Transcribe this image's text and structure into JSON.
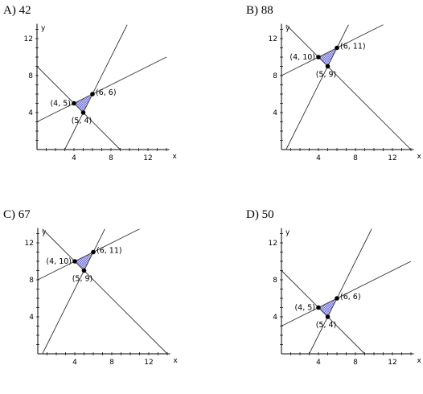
{
  "options": [
    {
      "label": "A)",
      "value": "42",
      "x_axis_label": "x",
      "y_axis_label": "y",
      "x_ticks": [
        "4",
        "8",
        "12"
      ],
      "y_ticks": [
        "12",
        "8",
        "4"
      ],
      "lines": [
        {
          "through": [
            [
              3,
              0
            ],
            [
              9.5,
              13
            ]
          ]
        },
        {
          "through": [
            [
              0,
              3
            ],
            [
              14,
              10
            ]
          ]
        },
        {
          "through": [
            [
              0,
              9
            ],
            [
              9,
              0
            ]
          ]
        }
      ],
      "points": [
        {
          "label": "(4, 5)",
          "x": 4,
          "y": 5
        },
        {
          "label": "(6, 6)",
          "x": 6,
          "y": 6
        },
        {
          "label": "(5, 4)",
          "x": 5,
          "y": 4
        }
      ]
    },
    {
      "label": "B)",
      "value": "88",
      "x_axis_label": "x",
      "y_axis_label": "y",
      "x_ticks": [
        "4",
        "8",
        "12"
      ],
      "y_ticks": [
        "12",
        "8",
        "4"
      ],
      "lines": [
        {
          "through": [
            [
              0.5,
              0
            ],
            [
              7,
              13
            ]
          ]
        },
        {
          "through": [
            [
              0,
              8
            ],
            [
              11,
              13.5
            ]
          ]
        },
        {
          "through": [
            [
              1,
              13
            ],
            [
              13,
              1
            ]
          ]
        }
      ],
      "points": [
        {
          "label": "(4, 10)",
          "x": 4,
          "y": 10
        },
        {
          "label": "(6, 11)",
          "x": 6,
          "y": 11
        },
        {
          "label": "(5, 9)",
          "x": 5,
          "y": 9
        }
      ]
    },
    {
      "label": "C)",
      "value": "67",
      "x_axis_label": "x",
      "y_axis_label": "y",
      "x_ticks": [
        "4",
        "8",
        "12"
      ],
      "y_ticks": [
        "12",
        "8",
        "4"
      ],
      "lines": [
        {
          "through": [
            [
              0.5,
              0
            ],
            [
              7,
              13
            ]
          ]
        },
        {
          "through": [
            [
              0,
              8
            ],
            [
              11,
              13.5
            ]
          ]
        },
        {
          "through": [
            [
              1,
              13
            ],
            [
              14,
              0
            ]
          ]
        }
      ],
      "points": [
        {
          "label": "(4, 10)",
          "x": 4,
          "y": 10
        },
        {
          "label": "(6, 11)",
          "x": 6,
          "y": 11
        },
        {
          "label": "(5, 9)",
          "x": 5,
          "y": 9
        }
      ]
    },
    {
      "label": "D)",
      "value": "50",
      "x_axis_label": "x",
      "y_axis_label": "y",
      "x_ticks": [
        "4",
        "8",
        "12"
      ],
      "y_ticks": [
        "12",
        "8",
        "4"
      ],
      "lines": [
        {
          "through": [
            [
              3,
              0
            ],
            [
              9.5,
              13
            ]
          ]
        },
        {
          "through": [
            [
              0,
              3
            ],
            [
              14,
              10
            ]
          ]
        },
        {
          "through": [
            [
              0,
              9
            ],
            [
              9,
              0
            ]
          ]
        }
      ],
      "points": [
        {
          "label": "(4, 5)",
          "x": 4,
          "y": 5
        },
        {
          "label": "(6, 6)",
          "x": 6,
          "y": 6
        },
        {
          "label": "(5, 4)",
          "x": 5,
          "y": 4
        }
      ]
    }
  ]
}
